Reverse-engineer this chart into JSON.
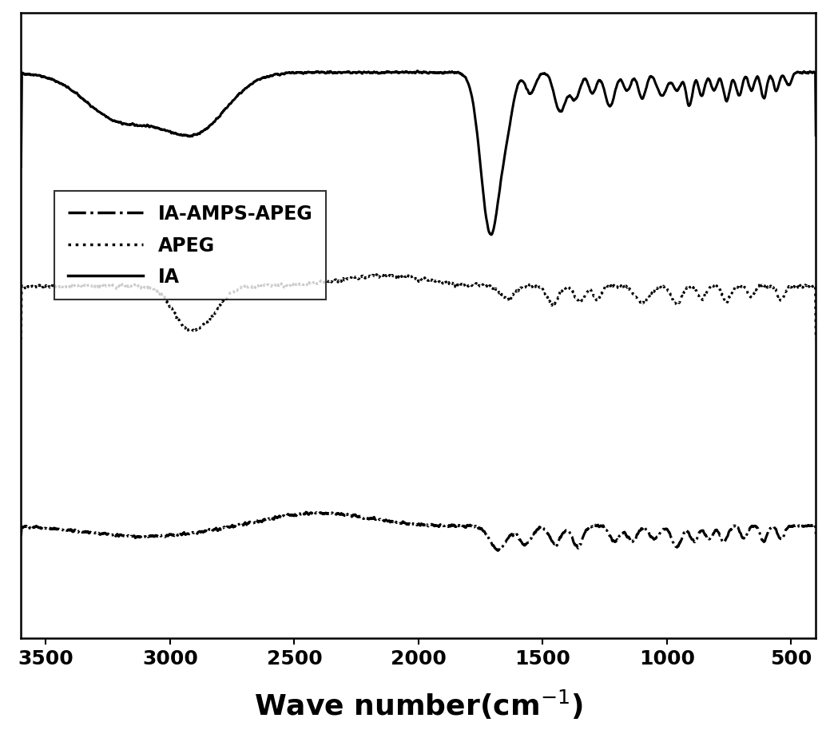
{
  "xlim": [
    3600,
    400
  ],
  "background_color": "#ffffff",
  "legend_labels": [
    "IA-AMPS-APEG",
    "APEG",
    "IA"
  ],
  "xticks": [
    3500,
    3000,
    2500,
    2000,
    1500,
    1000,
    500
  ],
  "title_fontsize": 26,
  "tick_fontsize": 18,
  "legend_fontsize": 17
}
